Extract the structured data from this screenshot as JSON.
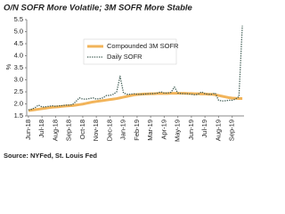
{
  "chart_data": {
    "type": "line",
    "title": "O/N SOFR More Volatile; 3M SOFR More Stable",
    "y_label": "%",
    "source": "Source: NYFed, St. Louis Fed",
    "legend": "upper center",
    "categories": [
      "Jun-18",
      null,
      null,
      null,
      "Jul-18",
      null,
      null,
      null,
      "Aug-18",
      null,
      null,
      null,
      "Sep-18",
      null,
      null,
      null,
      "Oct-18",
      null,
      null,
      null,
      "Nov-18",
      null,
      null,
      null,
      "Dec-18",
      null,
      null,
      null,
      "Jan-19",
      null,
      null,
      null,
      "Feb-19",
      null,
      null,
      null,
      "Mar-19",
      null,
      null,
      null,
      "Apr-19",
      null,
      null,
      null,
      "May-19",
      null,
      null,
      null,
      "Jun-19",
      null,
      null,
      null,
      "Jul-19",
      null,
      null,
      null,
      "Aug-19",
      null,
      null,
      null,
      "Sep-19",
      null,
      null,
      null
    ],
    "series": [
      {
        "name": "Compounded 3M SOFR",
        "color": "#f2b45a",
        "style": "solid",
        "values": [
          1.72,
          1.74,
          1.76,
          1.78,
          1.8,
          1.82,
          1.84,
          1.86,
          1.87,
          1.88,
          1.9,
          1.91,
          1.92,
          1.93,
          1.95,
          1.97,
          1.99,
          2.02,
          2.05,
          2.08,
          2.1,
          2.12,
          2.14,
          2.16,
          2.18,
          2.2,
          2.22,
          2.25,
          2.28,
          2.31,
          2.34,
          2.37,
          2.39,
          2.4,
          2.41,
          2.41,
          2.42,
          2.42,
          2.43,
          2.43,
          2.43,
          2.43,
          2.44,
          2.44,
          2.44,
          2.44,
          2.44,
          2.43,
          2.43,
          2.42,
          2.42,
          2.41,
          2.41,
          2.4,
          2.4,
          2.38,
          2.35,
          2.32,
          2.29,
          2.26,
          2.24,
          2.23,
          2.22,
          2.22
        ]
      },
      {
        "name": "Daily SOFR",
        "color": "#3d5a52",
        "style": "dotted",
        "values": [
          1.75,
          1.78,
          1.85,
          1.95,
          1.87,
          1.88,
          1.9,
          1.92,
          1.9,
          1.92,
          1.93,
          1.95,
          1.95,
          1.97,
          2.1,
          2.25,
          2.2,
          2.2,
          2.22,
          2.25,
          2.2,
          2.22,
          2.25,
          2.35,
          2.35,
          2.4,
          2.5,
          3.15,
          2.45,
          2.4,
          2.4,
          2.42,
          2.4,
          2.4,
          2.4,
          2.42,
          2.42,
          2.43,
          2.45,
          2.5,
          2.45,
          2.45,
          2.48,
          2.7,
          2.45,
          2.43,
          2.42,
          2.42,
          2.4,
          2.38,
          2.4,
          2.5,
          2.42,
          2.4,
          2.4,
          2.45,
          2.15,
          2.12,
          2.13,
          2.15,
          2.15,
          2.2,
          2.3,
          5.25
        ]
      }
    ],
    "ylim": [
      1.5,
      5.5
    ],
    "yticks": [
      1.5,
      {
        "value": 2,
        "label": "2.0"
      },
      2.5,
      {
        "value": 3,
        "label": "3.0"
      },
      3.5,
      {
        "value": 4,
        "label": "4.0"
      },
      4.5,
      {
        "value": 5,
        "label": "5.0"
      },
      5.5
    ]
  }
}
